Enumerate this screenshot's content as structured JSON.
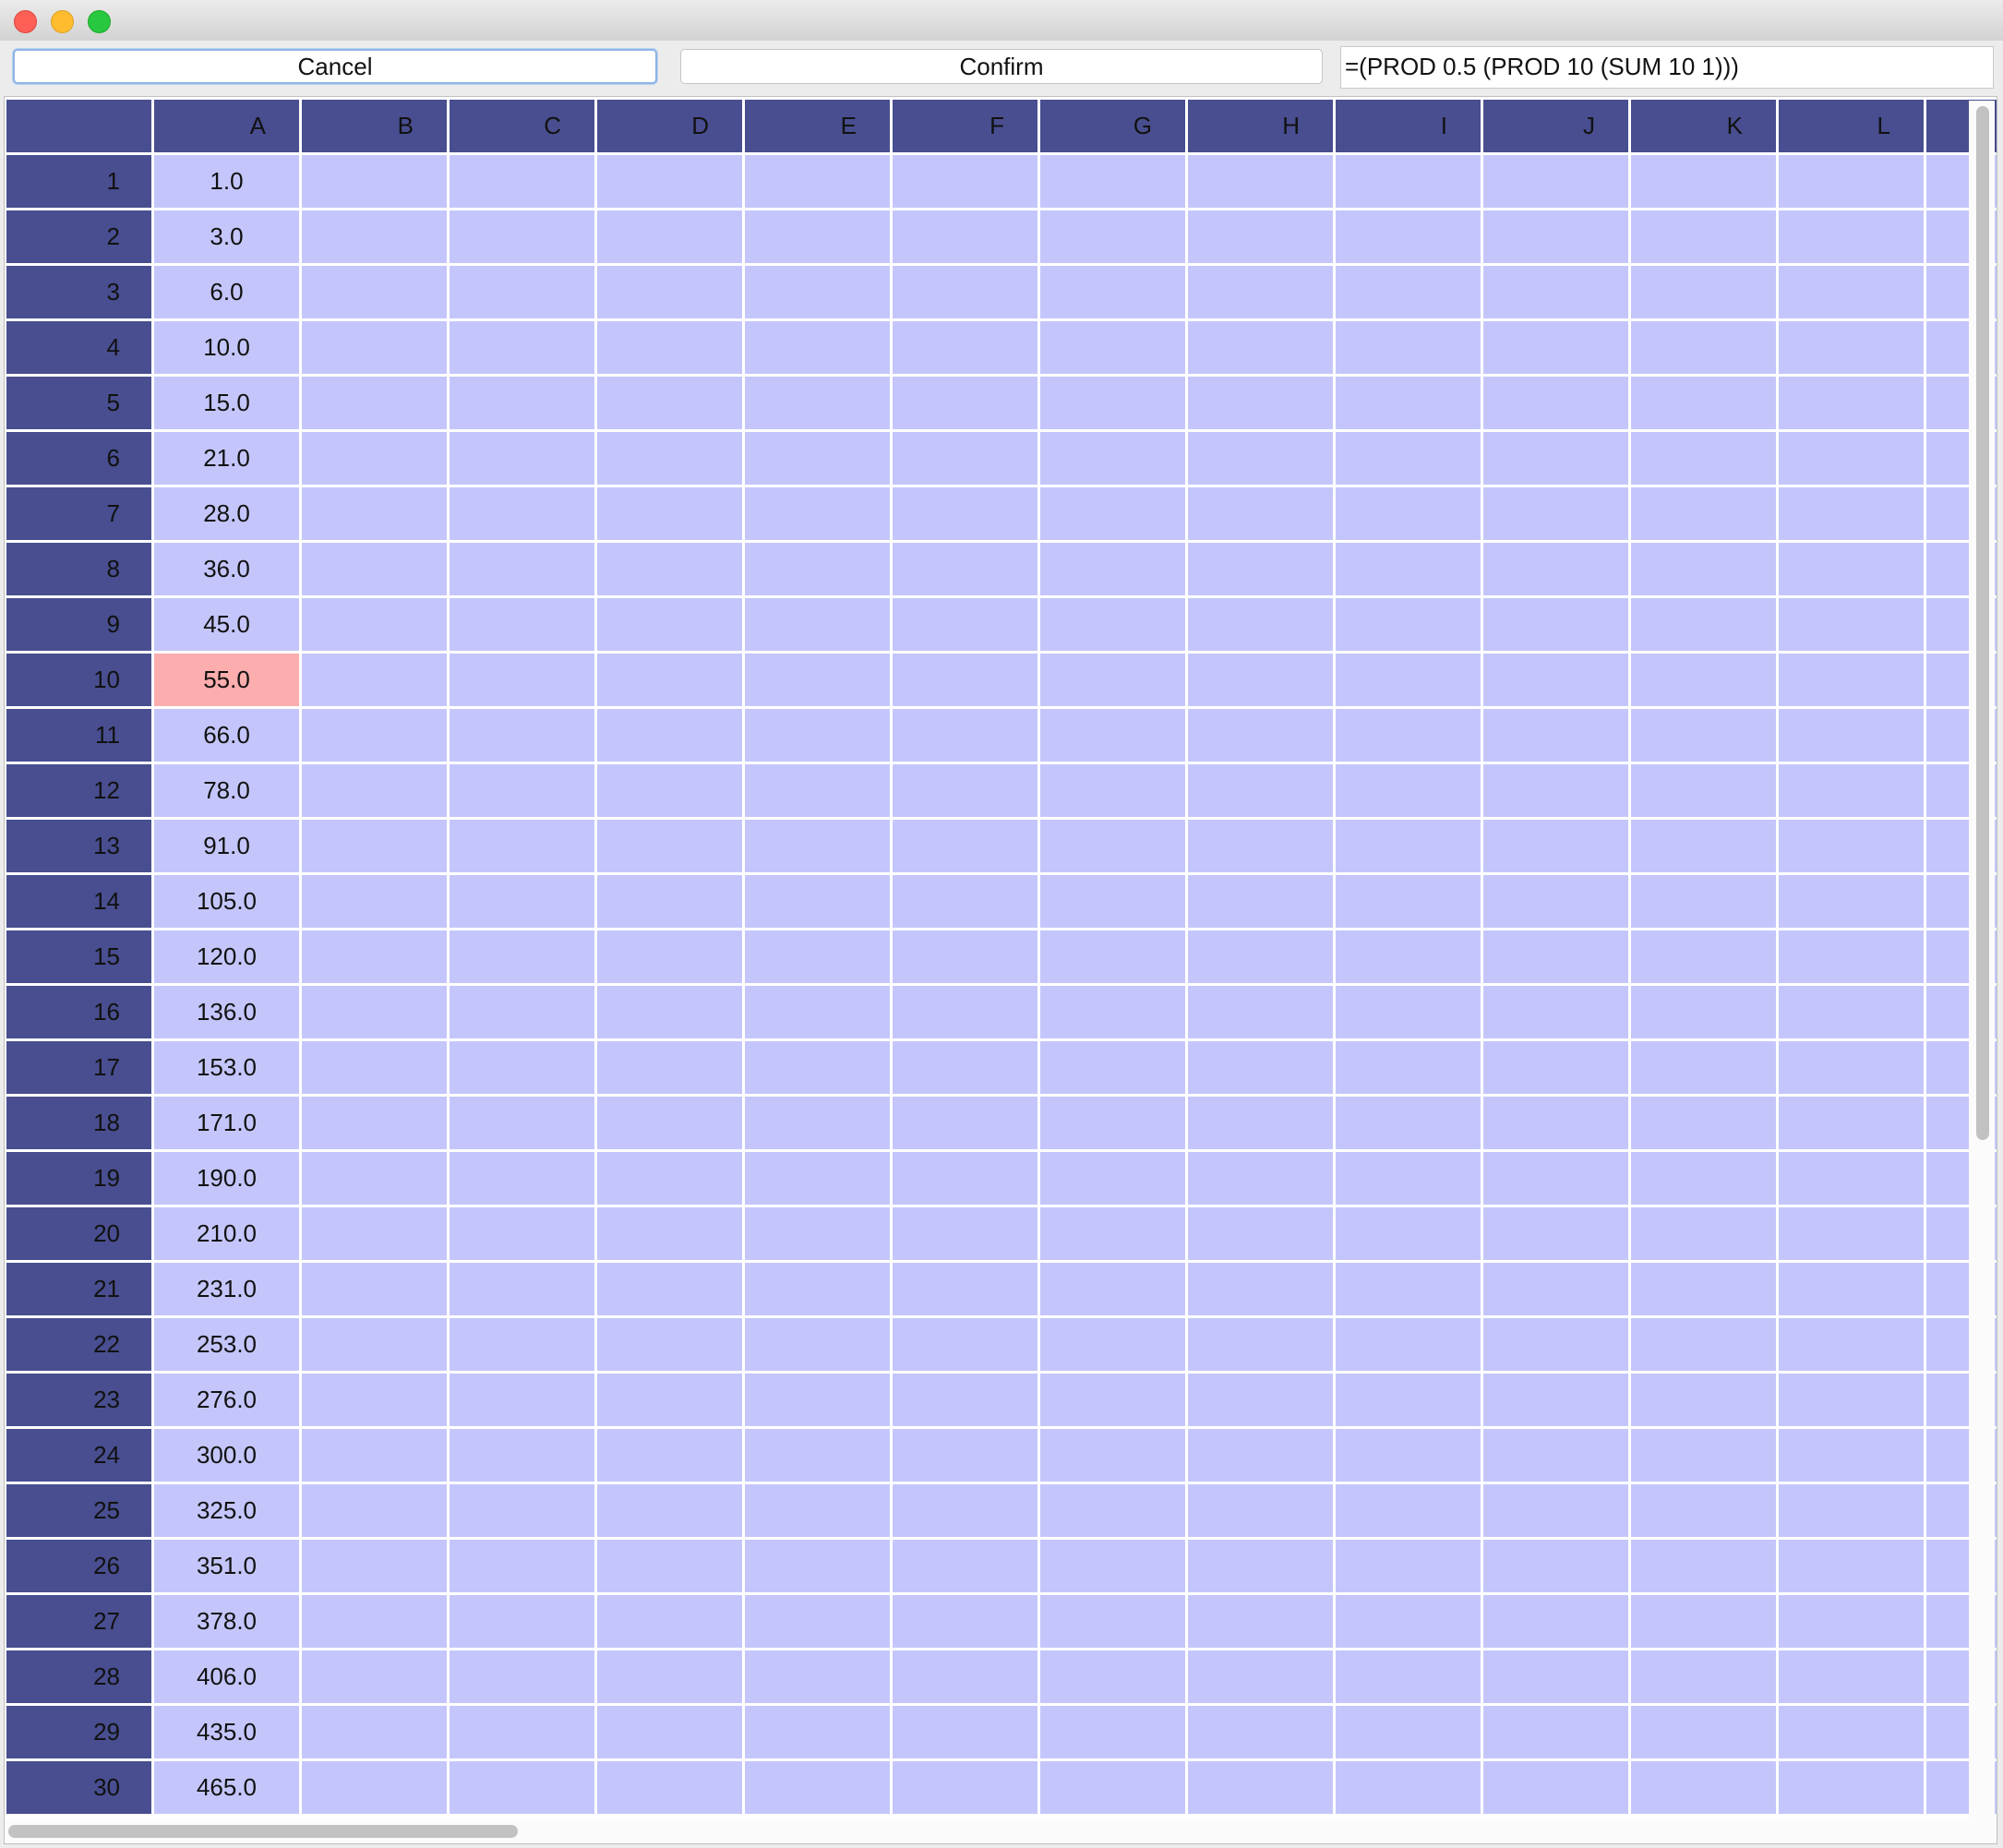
{
  "toolbar": {
    "cancel_label": "Cancel",
    "confirm_label": "Confirm",
    "formula_value": "=(PROD 0.5 (PROD 10 (SUM 10 1)))"
  },
  "columns": [
    "A",
    "B",
    "C",
    "D",
    "E",
    "F",
    "G",
    "H",
    "I",
    "J",
    "K",
    "L"
  ],
  "rows": [
    "1",
    "2",
    "3",
    "4",
    "5",
    "6",
    "7",
    "8",
    "9",
    "10",
    "11",
    "12",
    "13",
    "14",
    "15",
    "16",
    "17",
    "18",
    "19",
    "20",
    "21",
    "22",
    "23",
    "24",
    "25",
    "26",
    "27",
    "28",
    "29",
    "30"
  ],
  "column_a_values": [
    "1.0",
    "3.0",
    "6.0",
    "10.0",
    "15.0",
    "21.0",
    "28.0",
    "36.0",
    "45.0",
    "55.0",
    "66.0",
    "78.0",
    "91.0",
    "105.0",
    "120.0",
    "136.0",
    "153.0",
    "171.0",
    "190.0",
    "210.0",
    "231.0",
    "253.0",
    "276.0",
    "300.0",
    "325.0",
    "351.0",
    "378.0",
    "406.0",
    "435.0",
    "465.0"
  ],
  "selected_cell": "A10",
  "colors": {
    "header_bg": "#484e8f",
    "cell_bg": "#c4c6fb",
    "selected_bg": "#fcadad"
  }
}
